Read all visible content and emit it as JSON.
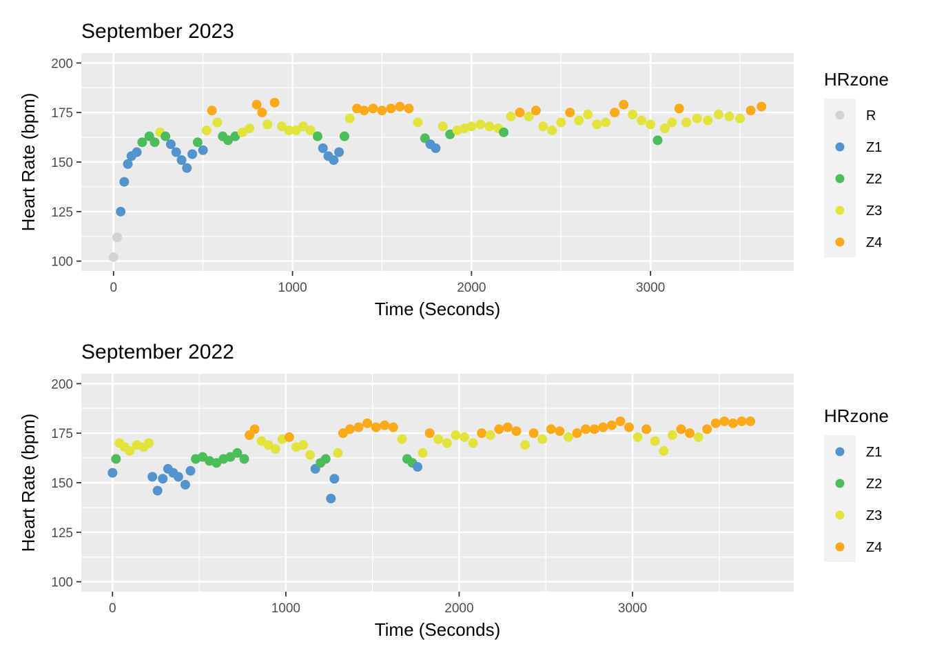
{
  "chart_data": [
    {
      "type": "scatter",
      "title": "September 2023",
      "xlabel": "Time (Seconds)",
      "ylabel": "Heart Rate (bpm)",
      "xlim": [
        -180,
        3800
      ],
      "ylim": [
        95,
        205
      ],
      "xticks": [
        0,
        1000,
        2000,
        3000
      ],
      "yticks": [
        100,
        125,
        150,
        175,
        200
      ],
      "grid": true,
      "legend_position": "right",
      "legend_title": "HRzone",
      "zones": [
        {
          "name": "R",
          "color": "#d3d3d3"
        },
        {
          "name": "Z1",
          "color": "#5394cf"
        },
        {
          "name": "Z2",
          "color": "#4cbd5a"
        },
        {
          "name": "Z3",
          "color": "#e3e33e"
        },
        {
          "name": "Z4",
          "color": "#fba919"
        }
      ],
      "x": [
        0,
        20,
        40,
        60,
        80,
        100,
        130,
        160,
        200,
        230,
        260,
        290,
        320,
        350,
        380,
        410,
        440,
        470,
        500,
        520,
        550,
        580,
        610,
        640,
        680,
        720,
        760,
        800,
        830,
        860,
        900,
        940,
        980,
        1020,
        1060,
        1100,
        1140,
        1170,
        1200,
        1230,
        1260,
        1290,
        1320,
        1360,
        1400,
        1450,
        1500,
        1550,
        1600,
        1650,
        1700,
        1740,
        1770,
        1800,
        1840,
        1880,
        1920,
        1960,
        2000,
        2050,
        2100,
        2150,
        2180,
        2220,
        2270,
        2320,
        2360,
        2400,
        2450,
        2500,
        2550,
        2600,
        2650,
        2700,
        2750,
        2800,
        2850,
        2900,
        2950,
        3000,
        3040,
        3080,
        3120,
        3160,
        3200,
        3260,
        3320,
        3380,
        3440,
        3500,
        3560,
        3620
      ],
      "y": [
        102,
        112,
        125,
        140,
        149,
        153,
        155,
        160,
        163,
        160,
        165,
        163,
        159,
        155,
        151,
        147,
        154,
        160,
        156,
        166,
        176,
        170,
        163,
        161,
        163,
        165,
        167,
        179,
        175,
        169,
        180,
        168,
        166,
        166,
        168,
        166,
        163,
        157,
        153,
        151,
        155,
        163,
        172,
        177,
        176,
        177,
        176,
        177,
        178,
        177,
        170,
        162,
        159,
        157,
        168,
        164,
        166,
        167,
        168,
        169,
        168,
        167,
        165,
        173,
        175,
        173,
        176,
        168,
        166,
        170,
        175,
        171,
        174,
        169,
        170,
        175,
        179,
        174,
        171,
        169,
        161,
        167,
        170,
        177,
        170,
        172,
        171,
        174,
        173,
        172,
        176,
        178
      ],
      "hrzone": [
        "R",
        "R",
        "Z1",
        "Z1",
        "Z1",
        "Z1",
        "Z1",
        "Z2",
        "Z2",
        "Z2",
        "Z3",
        "Z2",
        "Z1",
        "Z1",
        "Z1",
        "Z1",
        "Z1",
        "Z2",
        "Z1",
        "Z3",
        "Z4",
        "Z3",
        "Z2",
        "Z2",
        "Z2",
        "Z3",
        "Z3",
        "Z4",
        "Z4",
        "Z3",
        "Z4",
        "Z3",
        "Z3",
        "Z3",
        "Z3",
        "Z3",
        "Z2",
        "Z1",
        "Z1",
        "Z1",
        "Z1",
        "Z2",
        "Z3",
        "Z4",
        "Z4",
        "Z4",
        "Z4",
        "Z4",
        "Z4",
        "Z4",
        "Z3",
        "Z2",
        "Z1",
        "Z1",
        "Z3",
        "Z2",
        "Z3",
        "Z3",
        "Z3",
        "Z3",
        "Z3",
        "Z3",
        "Z2",
        "Z3",
        "Z4",
        "Z3",
        "Z4",
        "Z3",
        "Z3",
        "Z3",
        "Z4",
        "Z3",
        "Z3",
        "Z3",
        "Z3",
        "Z4",
        "Z4",
        "Z3",
        "Z3",
        "Z3",
        "Z2",
        "Z3",
        "Z3",
        "Z4",
        "Z3",
        "Z3",
        "Z3",
        "Z3",
        "Z3",
        "Z3",
        "Z4",
        "Z4"
      ]
    },
    {
      "type": "scatter",
      "title": "September 2022",
      "xlabel": "Time (Seconds)",
      "ylabel": "Heart Rate (bpm)",
      "xlim": [
        -180,
        3930
      ],
      "ylim": [
        95,
        205
      ],
      "xticks": [
        0,
        1000,
        2000,
        3000
      ],
      "yticks": [
        100,
        125,
        150,
        175,
        200
      ],
      "grid": true,
      "legend_position": "right",
      "legend_title": "HRzone",
      "zones": [
        {
          "name": "Z1",
          "color": "#5394cf"
        },
        {
          "name": "Z2",
          "color": "#4cbd5a"
        },
        {
          "name": "Z3",
          "color": "#e3e33e"
        },
        {
          "name": "Z4",
          "color": "#fba919"
        }
      ],
      "x": [
        0,
        20,
        40,
        70,
        100,
        140,
        180,
        210,
        230,
        260,
        290,
        320,
        350,
        380,
        420,
        450,
        480,
        520,
        560,
        600,
        640,
        680,
        720,
        760,
        790,
        820,
        860,
        900,
        940,
        980,
        1020,
        1060,
        1100,
        1140,
        1170,
        1200,
        1230,
        1260,
        1280,
        1300,
        1330,
        1370,
        1420,
        1470,
        1520,
        1570,
        1620,
        1670,
        1700,
        1730,
        1760,
        1790,
        1830,
        1880,
        1930,
        1980,
        2030,
        2080,
        2130,
        2180,
        2230,
        2280,
        2330,
        2380,
        2430,
        2480,
        2530,
        2580,
        2630,
        2680,
        2730,
        2780,
        2830,
        2880,
        2930,
        2980,
        3030,
        3080,
        3130,
        3180,
        3230,
        3280,
        3330,
        3380,
        3430,
        3480,
        3530,
        3580,
        3630,
        3680
      ],
      "y": [
        155,
        162,
        170,
        168,
        166,
        169,
        168,
        170,
        153,
        146,
        152,
        157,
        155,
        153,
        149,
        156,
        162,
        163,
        161,
        160,
        162,
        163,
        165,
        162,
        174,
        177,
        171,
        169,
        167,
        172,
        173,
        168,
        169,
        164,
        157,
        160,
        162,
        142,
        152,
        165,
        175,
        177,
        178,
        180,
        178,
        179,
        178,
        172,
        162,
        160,
        158,
        165,
        175,
        172,
        170,
        174,
        173,
        170,
        175,
        174,
        177,
        178,
        176,
        169,
        175,
        172,
        177,
        176,
        173,
        175,
        177,
        177,
        178,
        179,
        181,
        178,
        173,
        177,
        171,
        166,
        174,
        177,
        175,
        173,
        177,
        180,
        181,
        180,
        181,
        181
      ],
      "hrzone": [
        "Z1",
        "Z2",
        "Z3",
        "Z3",
        "Z3",
        "Z3",
        "Z3",
        "Z3",
        "Z1",
        "Z1",
        "Z1",
        "Z1",
        "Z1",
        "Z1",
        "Z1",
        "Z1",
        "Z2",
        "Z2",
        "Z2",
        "Z2",
        "Z2",
        "Z2",
        "Z2",
        "Z2",
        "Z4",
        "Z4",
        "Z3",
        "Z3",
        "Z3",
        "Z3",
        "Z4",
        "Z3",
        "Z3",
        "Z3",
        "Z1",
        "Z2",
        "Z2",
        "Z1",
        "Z1",
        "Z3",
        "Z4",
        "Z4",
        "Z4",
        "Z4",
        "Z4",
        "Z4",
        "Z4",
        "Z3",
        "Z2",
        "Z2",
        "Z1",
        "Z3",
        "Z4",
        "Z3",
        "Z3",
        "Z3",
        "Z3",
        "Z3",
        "Z4",
        "Z3",
        "Z4",
        "Z4",
        "Z4",
        "Z3",
        "Z4",
        "Z3",
        "Z4",
        "Z4",
        "Z3",
        "Z4",
        "Z4",
        "Z4",
        "Z4",
        "Z4",
        "Z4",
        "Z4",
        "Z3",
        "Z4",
        "Z3",
        "Z3",
        "Z3",
        "Z4",
        "Z4",
        "Z3",
        "Z4",
        "Z4",
        "Z4",
        "Z4",
        "Z4",
        "Z4"
      ]
    }
  ]
}
